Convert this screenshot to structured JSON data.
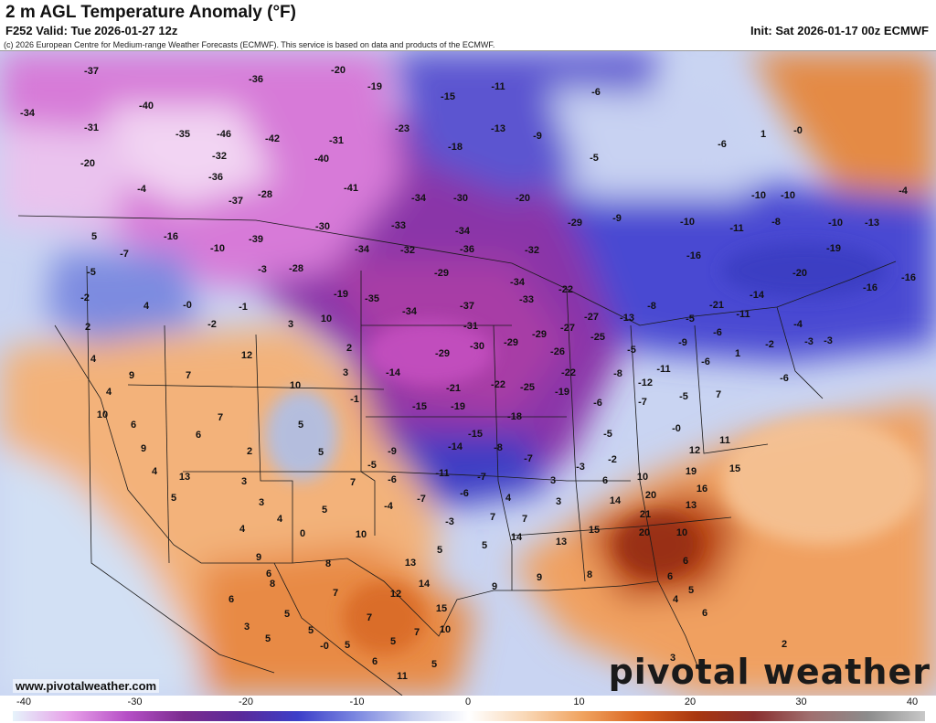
{
  "header": {
    "title": "2 m AGL Temperature Anomaly (°F)",
    "valid": "F252 Valid: Tue 2026-01-27 12z",
    "init": "Init: Sat 2026-01-17 00z ECMWF",
    "copyright": "(c) 2026 European Centre for Medium-range Weather Forecasts (ECMWF). This service is based on data and products of the ECMWF."
  },
  "footer": {
    "url": "www.pivotalweather.com",
    "brand": "pivotal weather"
  },
  "colorbar": {
    "ticks": [
      "-40",
      "-30",
      "-20",
      "-10",
      "0",
      "10",
      "20",
      "30",
      "40"
    ],
    "stops": [
      "#e6f3fb",
      "#e7a0e8",
      "#b64fc6",
      "#7b2c8f",
      "#5a2a9a",
      "#3c3fc9",
      "#7a86e0",
      "#c8d0f0",
      "#ffffff",
      "#f9d7b5",
      "#f0a35f",
      "#d9631f",
      "#a8360f",
      "#8a2f2f",
      "#a07070",
      "#8c8c8c",
      "#c8c8c8"
    ]
  },
  "anomaly_labels": [
    [
      "-37",
      100,
      77
    ],
    [
      "-40",
      160,
      115
    ],
    [
      "-34",
      30,
      123
    ],
    [
      "-31",
      100,
      139
    ],
    [
      "-35",
      200,
      146
    ],
    [
      "-46",
      245,
      146
    ],
    [
      "-42",
      298,
      151
    ],
    [
      "-36",
      280,
      86
    ],
    [
      "-20",
      370,
      76
    ],
    [
      "-19",
      410,
      94
    ],
    [
      "-11",
      545,
      94
    ],
    [
      "-15",
      490,
      105
    ],
    [
      "-6",
      652,
      100
    ],
    [
      "-20",
      96,
      178
    ],
    [
      "-32",
      240,
      170
    ],
    [
      "-31",
      368,
      153
    ],
    [
      "-40",
      352,
      173
    ],
    [
      "-23",
      440,
      140
    ],
    [
      "-13",
      545,
      140
    ],
    [
      "-9",
      588,
      148
    ],
    [
      "-18",
      498,
      160
    ],
    [
      "-5",
      650,
      172
    ],
    [
      "-6",
      790,
      157
    ],
    [
      "1",
      835,
      146
    ],
    [
      "-0",
      873,
      142
    ],
    [
      "-36",
      236,
      193
    ],
    [
      "-4",
      155,
      206
    ],
    [
      "-41",
      384,
      205
    ],
    [
      "-37",
      258,
      219
    ],
    [
      "-28",
      290,
      212
    ],
    [
      "-34",
      458,
      216
    ],
    [
      "-30",
      504,
      216
    ],
    [
      "-20",
      572,
      216
    ],
    [
      "-10",
      830,
      213
    ],
    [
      "-10",
      862,
      213
    ],
    [
      "-4",
      988,
      208
    ],
    [
      "5",
      103,
      258
    ],
    [
      "-16",
      187,
      258
    ],
    [
      "-10",
      238,
      271
    ],
    [
      "-39",
      280,
      261
    ],
    [
      "-30",
      353,
      247
    ],
    [
      "-33",
      436,
      246
    ],
    [
      "-34",
      506,
      252
    ],
    [
      "-29",
      629,
      243
    ],
    [
      "-9",
      675,
      238
    ],
    [
      "-10",
      752,
      242
    ],
    [
      "-11",
      806,
      249
    ],
    [
      "-8",
      849,
      242
    ],
    [
      "-10",
      914,
      243
    ],
    [
      "-13",
      954,
      243
    ],
    [
      "-7",
      136,
      277
    ],
    [
      "-34",
      396,
      272
    ],
    [
      "-32",
      446,
      273
    ],
    [
      "-36",
      511,
      272
    ],
    [
      "-32",
      582,
      273
    ],
    [
      "-16",
      759,
      279
    ],
    [
      "-19",
      912,
      271
    ],
    [
      "-5",
      100,
      297
    ],
    [
      "-3",
      287,
      294
    ],
    [
      "-28",
      324,
      293
    ],
    [
      "-29",
      483,
      298
    ],
    [
      "-20",
      875,
      298
    ],
    [
      "-16",
      994,
      303
    ],
    [
      "-2",
      93,
      325
    ],
    [
      "4",
      160,
      334
    ],
    [
      "-0",
      205,
      333
    ],
    [
      "-1",
      266,
      335
    ],
    [
      "-19",
      373,
      321
    ],
    [
      "-35",
      407,
      326
    ],
    [
      "-34",
      566,
      308
    ],
    [
      "-33",
      576,
      327
    ],
    [
      "-22",
      619,
      316
    ],
    [
      "-14",
      828,
      322
    ],
    [
      "-16",
      952,
      314
    ],
    [
      "-21",
      784,
      333
    ],
    [
      "2",
      96,
      357
    ],
    [
      "-2",
      232,
      354
    ],
    [
      "3",
      318,
      354
    ],
    [
      "10",
      357,
      348
    ],
    [
      "-34",
      448,
      340
    ],
    [
      "-37",
      511,
      334
    ],
    [
      "-31",
      515,
      356
    ],
    [
      "-27",
      621,
      358
    ],
    [
      "-27",
      647,
      346
    ],
    [
      "-13",
      686,
      347
    ],
    [
      "-8",
      713,
      334
    ],
    [
      "-5",
      755,
      348
    ],
    [
      "-11",
      813,
      343
    ],
    [
      "-6",
      785,
      363
    ],
    [
      "-4",
      873,
      354
    ],
    [
      "-3",
      885,
      373
    ],
    [
      "-3",
      906,
      372
    ],
    [
      "-29",
      484,
      386
    ],
    [
      "-30",
      522,
      378
    ],
    [
      "-29",
      559,
      374
    ],
    [
      "-29",
      590,
      365
    ],
    [
      "-26",
      610,
      384
    ],
    [
      "-25",
      654,
      368
    ],
    [
      "-5",
      691,
      382
    ],
    [
      "-9",
      747,
      374
    ],
    [
      "-6",
      772,
      395
    ],
    [
      "1",
      807,
      386
    ],
    [
      "-2",
      842,
      376
    ],
    [
      "4",
      102,
      392
    ],
    [
      "7",
      206,
      410
    ],
    [
      "12",
      270,
      388
    ],
    [
      "2",
      382,
      380
    ],
    [
      "3",
      378,
      407
    ],
    [
      "10",
      323,
      421
    ],
    [
      "-14",
      430,
      407
    ],
    [
      "-21",
      496,
      424
    ],
    [
      "-22",
      545,
      420
    ],
    [
      "-25",
      577,
      423
    ],
    [
      "-22",
      622,
      407
    ],
    [
      "-11",
      726,
      403
    ],
    [
      "-8",
      676,
      408
    ],
    [
      "-12",
      706,
      418
    ],
    [
      "-5",
      748,
      433
    ],
    [
      "-6",
      858,
      413
    ],
    [
      "9",
      144,
      410
    ],
    [
      "4",
      119,
      428
    ],
    [
      "10",
      112,
      453
    ],
    [
      "-1",
      388,
      436
    ],
    [
      "-15",
      459,
      444
    ],
    [
      "-19",
      501,
      444
    ],
    [
      "-19",
      615,
      428
    ],
    [
      "-6",
      654,
      440
    ],
    [
      "-7",
      703,
      439
    ],
    [
      "7",
      786,
      431
    ],
    [
      "6",
      146,
      464
    ],
    [
      "7",
      241,
      456
    ],
    [
      "5",
      329,
      464
    ],
    [
      "-18",
      563,
      455
    ],
    [
      "-5",
      665,
      474
    ],
    [
      "-0",
      740,
      468
    ],
    [
      "6",
      217,
      475
    ],
    [
      "9",
      157,
      490
    ],
    [
      "2",
      273,
      493
    ],
    [
      "5",
      351,
      494
    ],
    [
      "-9",
      429,
      493
    ],
    [
      "-14",
      498,
      488
    ],
    [
      "-8",
      545,
      489
    ],
    [
      "-15",
      520,
      474
    ],
    [
      "11",
      793,
      481
    ],
    [
      "12",
      760,
      492
    ],
    [
      "4",
      169,
      515
    ],
    [
      "13",
      202,
      521
    ],
    [
      "3",
      267,
      526
    ],
    [
      "7",
      386,
      527
    ],
    [
      "-5",
      407,
      508
    ],
    [
      "-6",
      429,
      524
    ],
    [
      "-11",
      484,
      517
    ],
    [
      "-7",
      527,
      521
    ],
    [
      "-7",
      578,
      501
    ],
    [
      "-3",
      635,
      510
    ],
    [
      "-2",
      670,
      502
    ],
    [
      "3",
      605,
      525
    ],
    [
      "6",
      662,
      525
    ],
    [
      "10",
      703,
      521
    ],
    [
      "19",
      756,
      515
    ],
    [
      "15",
      804,
      512
    ],
    [
      "16",
      768,
      534
    ],
    [
      "5",
      190,
      544
    ],
    [
      "3",
      286,
      549
    ],
    [
      "4",
      306,
      567
    ],
    [
      "5",
      355,
      557
    ],
    [
      "-4",
      425,
      553
    ],
    [
      "-7",
      461,
      545
    ],
    [
      "-6",
      508,
      539
    ],
    [
      "4",
      556,
      544
    ],
    [
      "3",
      611,
      548
    ],
    [
      "14",
      673,
      547
    ],
    [
      "20",
      712,
      541
    ],
    [
      "13",
      756,
      552
    ],
    [
      "-3",
      492,
      570
    ],
    [
      "7",
      539,
      565
    ],
    [
      "7",
      574,
      567
    ],
    [
      "4",
      265,
      578
    ],
    [
      "0",
      331,
      583
    ],
    [
      "10",
      395,
      584
    ],
    [
      "14",
      565,
      587
    ],
    [
      "13",
      614,
      592
    ],
    [
      "15",
      650,
      579
    ],
    [
      "21",
      706,
      562
    ],
    [
      "20",
      705,
      582
    ],
    [
      "10",
      746,
      582
    ],
    [
      "5",
      530,
      596
    ],
    [
      "5",
      481,
      601
    ],
    [
      "6",
      750,
      613
    ],
    [
      "9",
      283,
      609
    ],
    [
      "6",
      294,
      627
    ],
    [
      "8",
      298,
      638
    ],
    [
      "8",
      359,
      616
    ],
    [
      "13",
      449,
      615
    ],
    [
      "14",
      464,
      638
    ],
    [
      "9",
      541,
      641
    ],
    [
      "9",
      590,
      631
    ],
    [
      "8",
      645,
      628
    ],
    [
      "6",
      733,
      630
    ],
    [
      "5",
      756,
      645
    ],
    [
      "4",
      739,
      655
    ],
    [
      "7",
      367,
      648
    ],
    [
      "12",
      433,
      649
    ],
    [
      "15",
      483,
      665
    ],
    [
      "6",
      253,
      655
    ],
    [
      "5",
      314,
      671
    ],
    [
      "7",
      404,
      675
    ],
    [
      "10",
      487,
      688
    ],
    [
      "7",
      456,
      691
    ],
    [
      "6",
      771,
      670
    ],
    [
      "3",
      270,
      685
    ],
    [
      "5",
      293,
      698
    ],
    [
      "5",
      340,
      689
    ],
    [
      "-0",
      355,
      706
    ],
    [
      "5",
      380,
      705
    ],
    [
      "6",
      410,
      723
    ],
    [
      "5",
      430,
      701
    ],
    [
      "5",
      475,
      726
    ],
    [
      "11",
      440,
      739
    ],
    [
      "3",
      736,
      719
    ],
    [
      "2",
      858,
      704
    ]
  ]
}
